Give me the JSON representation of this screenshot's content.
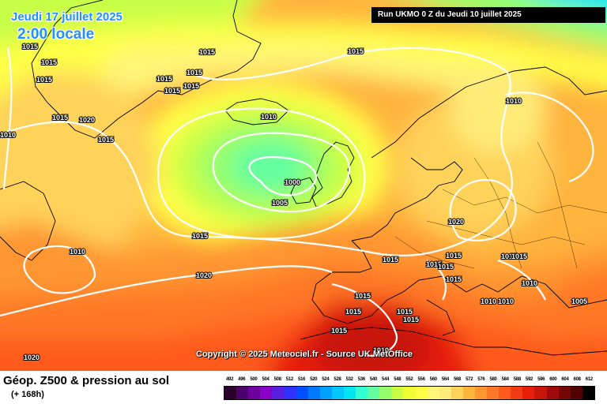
{
  "map": {
    "date_label": "Jeudi 17 juillet 2025",
    "time_label": "2:00 locale",
    "run_label": "Run UKMO 0 Z du Jeudi 10 juillet 2025",
    "copyright": "Copyright © 2025 Meteociel.fr - Source UK MetOffice",
    "product_title": "Géop. Z500 & pression au sol",
    "forecast_hour": "(+ 168h)",
    "isobar_labels": [
      "1015",
      "1015",
      "1015",
      "1015",
      "1015",
      "1015",
      "1015",
      "1015",
      "1015",
      "1015",
      "1010",
      "1020",
      "1015",
      "1010",
      "1000",
      "1005",
      "1015",
      "1010",
      "1020",
      "1015",
      "1015",
      "1020",
      "1010",
      "1015",
      "1015",
      "1015",
      "1015",
      "1015",
      "1015",
      "1015",
      "1015",
      "1010",
      "1010",
      "1005",
      "1015",
      "1015",
      "1010",
      "1010",
      "1020"
    ],
    "legend": {
      "unit_note": "",
      "values": [
        "492",
        "496",
        "500",
        "504",
        "508",
        "512",
        "516",
        "520",
        "524",
        "528",
        "532",
        "536",
        "540",
        "544",
        "548",
        "552",
        "556",
        "560",
        "564",
        "568",
        "572",
        "576",
        "580",
        "584",
        "588",
        "592",
        "596",
        "600",
        "604",
        "608",
        "612"
      ],
      "colors": [
        "#2a002a",
        "#4b006e",
        "#6e009e",
        "#8a00c8",
        "#5a1ee0",
        "#3232ff",
        "#0050ff",
        "#0078ff",
        "#00a0ff",
        "#00c8ff",
        "#00e6f0",
        "#32ffd2",
        "#64ffa0",
        "#96ff6e",
        "#c8ff46",
        "#f0ff32",
        "#ffff46",
        "#fff578",
        "#ffeb78",
        "#ffd25a",
        "#ffb43c",
        "#ff9632",
        "#ff7828",
        "#ff5a1e",
        "#f03c14",
        "#e61e0a",
        "#c8140a",
        "#a00a0a",
        "#780505",
        "#500000",
        "#000000"
      ]
    },
    "palette": {
      "isobar": "#ffffff",
      "land_border": "#000000"
    }
  }
}
